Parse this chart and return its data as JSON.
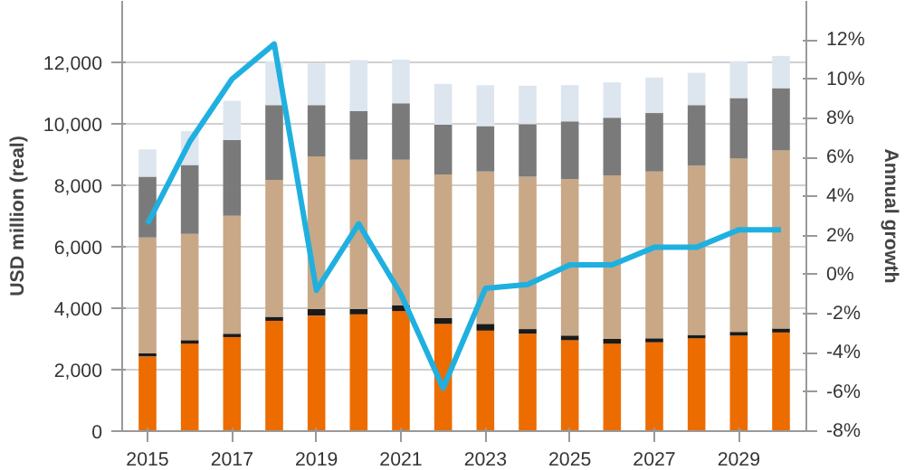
{
  "chart_data": {
    "type": "bar",
    "stacked": true,
    "ylabel": "USD million (real)",
    "y2label": "Annual growth",
    "x": [
      2015,
      2016,
      2017,
      2018,
      2019,
      2020,
      2021,
      2022,
      2023,
      2024,
      2025,
      2026,
      2027,
      2028,
      2029,
      2030
    ],
    "xlim": [
      2014.4,
      2030.6
    ],
    "xticks": [
      2015,
      2017,
      2019,
      2021,
      2023,
      2025,
      2027,
      2029
    ],
    "ylim": [
      0,
      14000
    ],
    "yticks": [
      0,
      {
        "value": 2000,
        "label": "2,000"
      },
      {
        "value": 4000,
        "label": "4,000"
      },
      {
        "value": 6000,
        "label": "6,000"
      },
      {
        "value": 8000,
        "label": "8,000"
      },
      {
        "value": 10000,
        "label": "10,000"
      },
      {
        "value": 12000,
        "label": "12,000"
      }
    ],
    "y2lim": [
      -8,
      14
    ],
    "y2ticks": [
      {
        "value": -8,
        "label": "-8%"
      },
      {
        "value": -6,
        "label": "-6%"
      },
      {
        "value": -4,
        "label": "-4%"
      },
      {
        "value": -2,
        "label": "-2%"
      },
      {
        "value": 0,
        "label": "0%"
      },
      {
        "value": 2,
        "label": "2%"
      },
      {
        "value": 4,
        "label": "4%"
      },
      {
        "value": 6,
        "label": "6%"
      },
      {
        "value": 8,
        "label": "8%"
      },
      {
        "value": 10,
        "label": "10%"
      },
      {
        "value": 12,
        "label": "12%"
      }
    ],
    "grid": "y",
    "series": [
      {
        "color": "#ec6c00",
        "values": [
          2430,
          2850,
          3060,
          3590,
          3760,
          3800,
          3910,
          3490,
          3270,
          3170,
          2960,
          2850,
          2890,
          3020,
          3110,
          3210
        ]
      },
      {
        "color": "#1a1a1a",
        "values": [
          100,
          110,
          110,
          130,
          210,
          170,
          190,
          190,
          220,
          150,
          150,
          150,
          130,
          110,
          120,
          130
        ]
      },
      {
        "color": "#c8a886",
        "values": [
          3770,
          3460,
          3840,
          4460,
          4970,
          4860,
          4730,
          4670,
          4960,
          4960,
          5090,
          5320,
          5430,
          5510,
          5640,
          5790
        ]
      },
      {
        "color": "#7a7a7a",
        "values": [
          1980,
          2240,
          2460,
          2430,
          1670,
          1590,
          1840,
          1620,
          1480,
          1710,
          1880,
          1880,
          1900,
          1970,
          1970,
          2030
        ]
      },
      {
        "color": "#dde6ef",
        "values": [
          890,
          1100,
          1280,
          1430,
          1350,
          1650,
          1420,
          1330,
          1330,
          1250,
          1180,
          1150,
          1160,
          1050,
          1200,
          1050
        ]
      },
      {
        "type": "line",
        "axis": "y2",
        "color": "#1fb0e0",
        "values": [
          2.6,
          6.8,
          10.0,
          11.8,
          -0.8,
          2.6,
          -1.0,
          -5.8,
          -0.7,
          -0.5,
          0.5,
          0.5,
          1.4,
          1.4,
          2.3,
          2.3
        ]
      }
    ]
  }
}
